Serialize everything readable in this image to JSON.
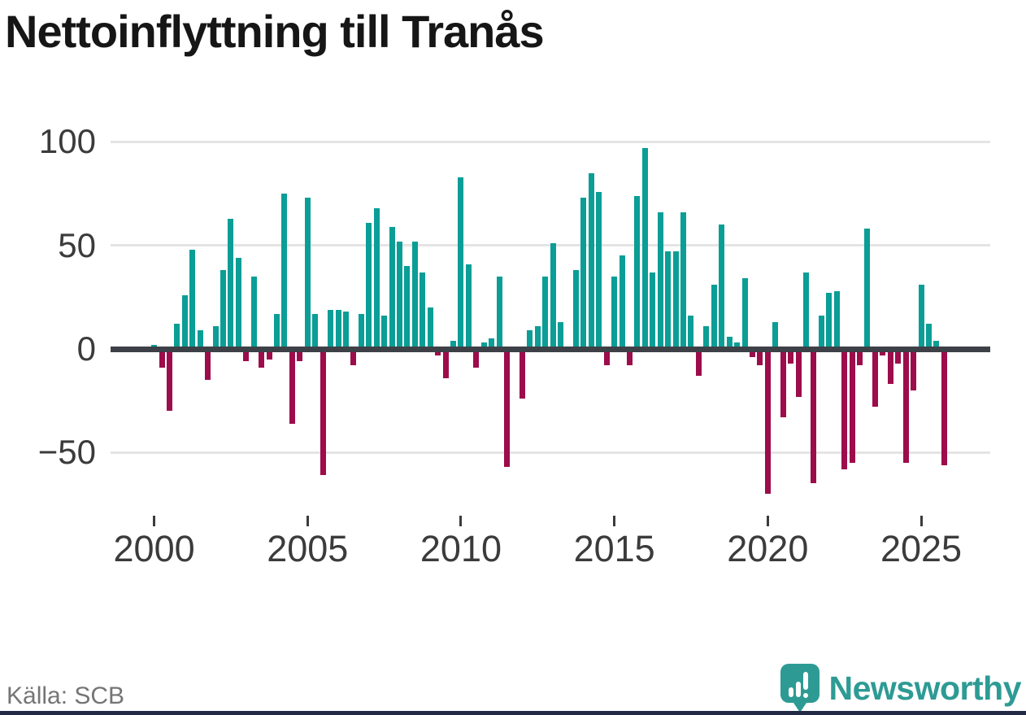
{
  "title": "Nettoinflyttning till Tranås",
  "source": "Källa: SCB",
  "branding": {
    "logo_text": "Newsworthy",
    "logo_icon": "bar-chart-speech-bubble"
  },
  "colors": {
    "positive": "#0a9e96",
    "negative": "#9d0c4b",
    "axis": "#3d4147",
    "gridline": "#e4e4e4",
    "title": "#161616",
    "tick_label": "#3b3b3b",
    "source_text": "#757575",
    "brand_teal": "#2d9b94",
    "footer_strip": "#232a45"
  },
  "chart_data": {
    "type": "bar",
    "title": "Nettoinflyttning till Tranås",
    "frequency": "quarterly",
    "start_period": "2000-Q1",
    "end_period": "2025-Q4",
    "values": [
      2,
      -9,
      -30,
      12,
      26,
      48,
      9,
      -15,
      11,
      38,
      63,
      44,
      -6,
      35,
      -9,
      -5,
      17,
      75,
      -36,
      -6,
      73,
      17,
      -61,
      19,
      19,
      18,
      -8,
      17,
      61,
      68,
      16,
      59,
      52,
      40,
      52,
      37,
      20,
      -3,
      -14,
      4,
      83,
      41,
      -9,
      3,
      5,
      35,
      -57,
      0,
      -24,
      9,
      11,
      35,
      51,
      13,
      1,
      38,
      73,
      85,
      76,
      -8,
      35,
      45,
      -8,
      74,
      97,
      37,
      66,
      47,
      47,
      66,
      16,
      -13,
      11,
      31,
      60,
      6,
      3,
      34,
      -4,
      -8,
      -70,
      13,
      -33,
      -7,
      -23,
      37,
      -65,
      16,
      27,
      28,
      -58,
      -55,
      -8,
      58,
      -28,
      -3,
      -17,
      -7,
      -55,
      -20,
      31,
      12,
      4,
      -56
    ],
    "ytick_values": [
      100,
      50,
      0,
      -50
    ],
    "ytick_labels": [
      "100",
      "50",
      "0",
      "−50"
    ],
    "xtick_years": [
      "2000",
      "2005",
      "2010",
      "2015",
      "2020",
      "2025"
    ],
    "ylim": [
      -75,
      105
    ],
    "grid": true,
    "legend": false,
    "xlabel": "",
    "ylabel": ""
  }
}
